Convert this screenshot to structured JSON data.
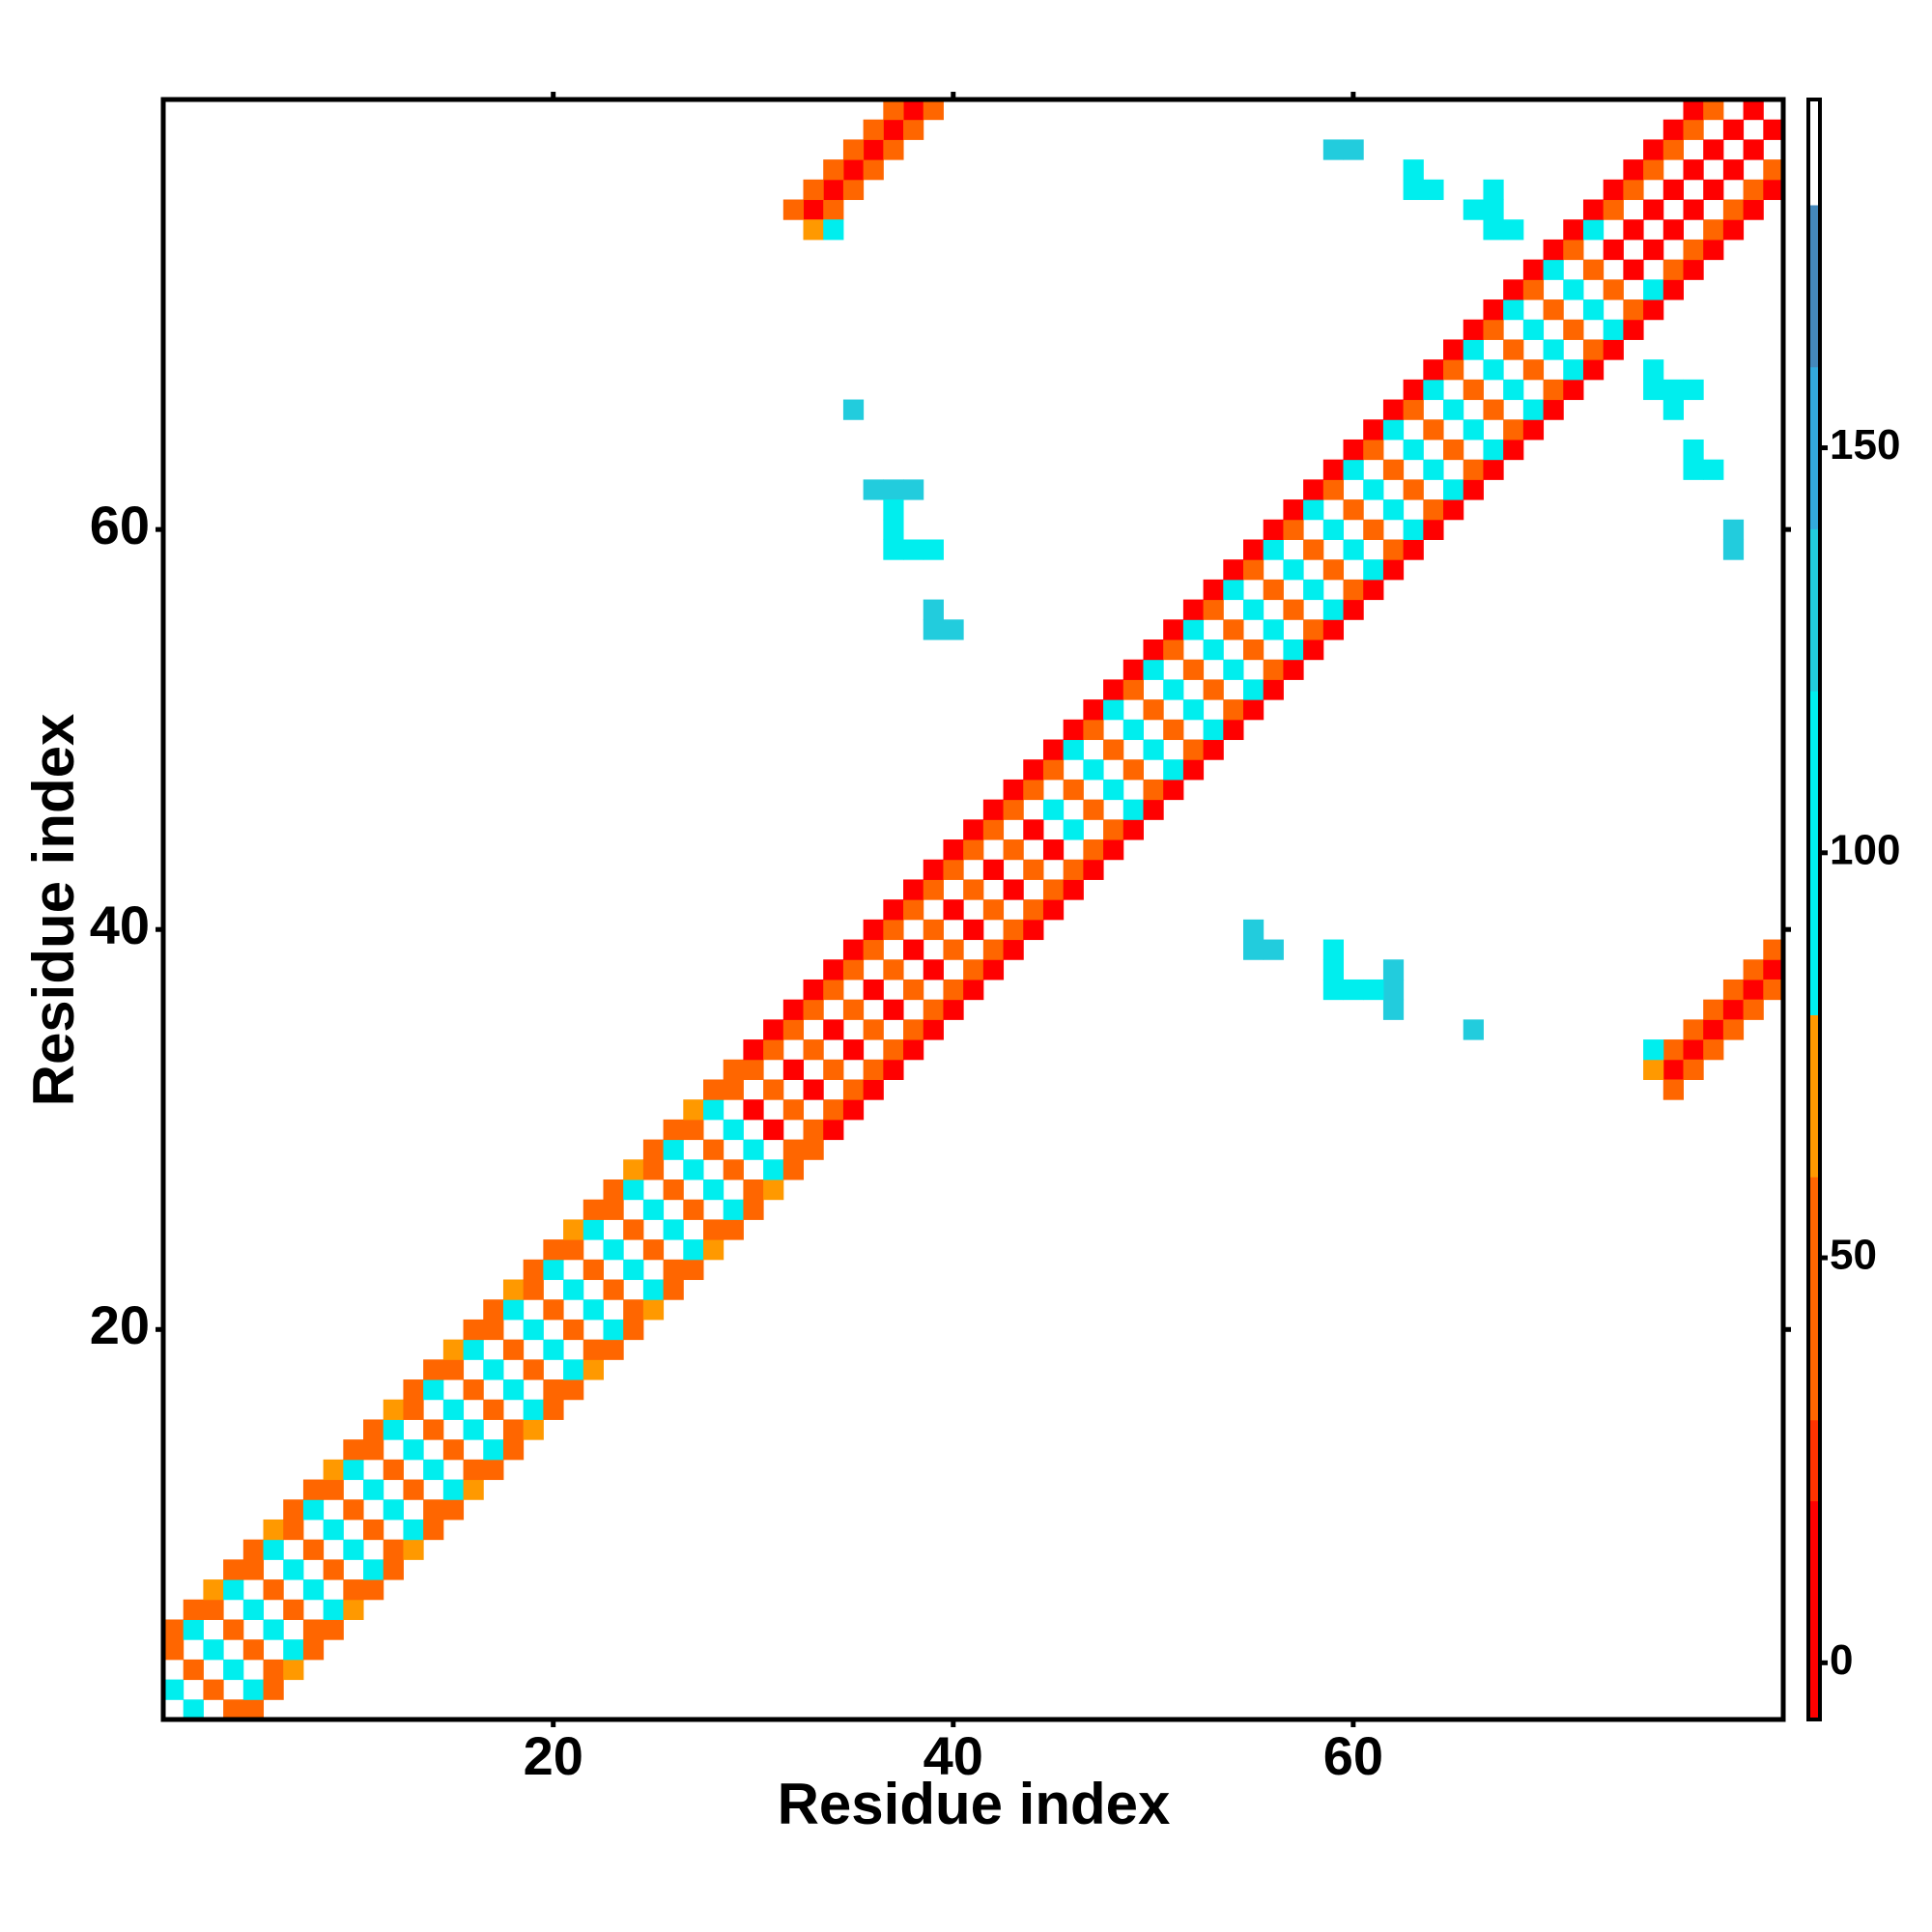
{
  "chart_data": {
    "type": "heatmap",
    "symmetric": true,
    "x_label": "Residue index",
    "y_label": "Residue index",
    "xlim": [
      0.5,
      81.5
    ],
    "ylim": [
      0.5,
      81.5
    ],
    "xticks": [
      20,
      40,
      60
    ],
    "yticks": [
      20,
      40,
      60
    ],
    "colorbar_lim": [
      -7,
      193
    ],
    "colorbar_ticks": [
      0,
      50,
      100,
      150
    ],
    "colorscale": [
      [
        -7,
        "#ff0000"
      ],
      [
        20,
        "#ff3300"
      ],
      [
        30,
        "#ff6600"
      ],
      [
        60,
        "#ff9900"
      ],
      [
        80,
        "#00eeee"
      ],
      [
        120,
        "#22ccdd"
      ],
      [
        140,
        "#33aadd"
      ],
      [
        160,
        "#4488bb"
      ],
      [
        180,
        "#ffffff"
      ]
    ],
    "cells": [
      [
        1,
        2,
        100
      ],
      [
        1,
        4,
        40
      ],
      [
        1,
        5,
        40
      ],
      [
        2,
        3,
        40
      ],
      [
        2,
        5,
        100
      ],
      [
        2,
        6,
        40
      ],
      [
        3,
        4,
        100
      ],
      [
        3,
        6,
        40
      ],
      [
        3,
        7,
        65
      ],
      [
        4,
        5,
        40
      ],
      [
        4,
        7,
        100
      ],
      [
        4,
        8,
        40
      ],
      [
        5,
        6,
        100
      ],
      [
        5,
        8,
        40
      ],
      [
        5,
        9,
        40
      ],
      [
        6,
        7,
        40
      ],
      [
        6,
        9,
        100
      ],
      [
        6,
        10,
        65
      ],
      [
        7,
        8,
        100
      ],
      [
        7,
        10,
        40
      ],
      [
        7,
        11,
        40
      ],
      [
        8,
        9,
        40
      ],
      [
        8,
        11,
        100
      ],
      [
        8,
        12,
        40
      ],
      [
        9,
        10,
        100
      ],
      [
        9,
        12,
        40
      ],
      [
        9,
        13,
        65
      ],
      [
        10,
        11,
        40
      ],
      [
        10,
        13,
        100
      ],
      [
        10,
        14,
        40
      ],
      [
        11,
        12,
        100
      ],
      [
        11,
        14,
        40
      ],
      [
        11,
        15,
        40
      ],
      [
        12,
        13,
        40
      ],
      [
        12,
        15,
        100
      ],
      [
        12,
        16,
        65
      ],
      [
        13,
        14,
        100
      ],
      [
        13,
        16,
        40
      ],
      [
        13,
        17,
        40
      ],
      [
        14,
        15,
        40
      ],
      [
        14,
        17,
        100
      ],
      [
        14,
        18,
        40
      ],
      [
        15,
        16,
        100
      ],
      [
        15,
        18,
        40
      ],
      [
        15,
        19,
        65
      ],
      [
        16,
        17,
        40
      ],
      [
        16,
        19,
        100
      ],
      [
        16,
        20,
        40
      ],
      [
        17,
        18,
        100
      ],
      [
        17,
        20,
        40
      ],
      [
        17,
        21,
        40
      ],
      [
        18,
        19,
        40
      ],
      [
        18,
        21,
        100
      ],
      [
        18,
        22,
        65
      ],
      [
        19,
        20,
        100
      ],
      [
        19,
        22,
        40
      ],
      [
        19,
        23,
        40
      ],
      [
        20,
        21,
        40
      ],
      [
        20,
        23,
        100
      ],
      [
        20,
        24,
        40
      ],
      [
        21,
        22,
        100
      ],
      [
        21,
        24,
        40
      ],
      [
        21,
        25,
        65
      ],
      [
        22,
        23,
        40
      ],
      [
        22,
        25,
        100
      ],
      [
        22,
        26,
        40
      ],
      [
        23,
        24,
        100
      ],
      [
        23,
        26,
        40
      ],
      [
        23,
        27,
        40
      ],
      [
        24,
        25,
        40
      ],
      [
        24,
        27,
        100
      ],
      [
        24,
        28,
        65
      ],
      [
        25,
        26,
        100
      ],
      [
        25,
        28,
        40
      ],
      [
        25,
        29,
        40
      ],
      [
        26,
        27,
        40
      ],
      [
        26,
        29,
        100
      ],
      [
        26,
        30,
        40
      ],
      [
        27,
        28,
        100
      ],
      [
        27,
        30,
        40
      ],
      [
        27,
        31,
        65
      ],
      [
        28,
        29,
        40
      ],
      [
        28,
        31,
        100
      ],
      [
        28,
        32,
        40
      ],
      [
        29,
        30,
        100
      ],
      [
        29,
        32,
        40
      ],
      [
        29,
        33,
        40
      ],
      [
        30,
        31,
        15
      ],
      [
        30,
        33,
        40
      ],
      [
        30,
        34,
        15
      ],
      [
        31,
        32,
        40
      ],
      [
        31,
        34,
        40
      ],
      [
        31,
        35,
        15
      ],
      [
        32,
        33,
        15
      ],
      [
        32,
        35,
        40
      ],
      [
        32,
        36,
        15
      ],
      [
        33,
        34,
        40
      ],
      [
        33,
        36,
        40
      ],
      [
        33,
        37,
        15
      ],
      [
        34,
        35,
        15
      ],
      [
        34,
        37,
        40
      ],
      [
        34,
        38,
        15
      ],
      [
        35,
        36,
        40
      ],
      [
        35,
        38,
        40
      ],
      [
        35,
        39,
        15
      ],
      [
        36,
        37,
        15
      ],
      [
        36,
        39,
        40
      ],
      [
        36,
        40,
        15
      ],
      [
        37,
        38,
        40
      ],
      [
        37,
        40,
        40
      ],
      [
        37,
        41,
        15
      ],
      [
        38,
        39,
        15
      ],
      [
        38,
        41,
        40
      ],
      [
        38,
        42,
        15
      ],
      [
        39,
        40,
        40
      ],
      [
        39,
        42,
        40
      ],
      [
        39,
        43,
        15
      ],
      [
        40,
        41,
        15
      ],
      [
        40,
        43,
        40
      ],
      [
        40,
        44,
        15
      ],
      [
        41,
        42,
        40
      ],
      [
        41,
        44,
        40
      ],
      [
        41,
        45,
        15
      ],
      [
        42,
        43,
        15
      ],
      [
        42,
        45,
        40
      ],
      [
        42,
        46,
        15
      ],
      [
        43,
        44,
        40
      ],
      [
        43,
        46,
        40
      ],
      [
        43,
        47,
        15
      ],
      [
        44,
        45,
        15
      ],
      [
        44,
        47,
        40
      ],
      [
        44,
        48,
        15
      ],
      [
        45,
        46,
        100
      ],
      [
        45,
        48,
        40
      ],
      [
        45,
        49,
        15
      ],
      [
        46,
        47,
        40
      ],
      [
        46,
        49,
        100
      ],
      [
        46,
        50,
        15
      ],
      [
        47,
        48,
        100
      ],
      [
        47,
        50,
        40
      ],
      [
        47,
        51,
        15
      ],
      [
        48,
        49,
        40
      ],
      [
        48,
        51,
        100
      ],
      [
        48,
        52,
        15
      ],
      [
        49,
        50,
        100
      ],
      [
        49,
        52,
        40
      ],
      [
        49,
        53,
        15
      ],
      [
        50,
        51,
        40
      ],
      [
        50,
        53,
        100
      ],
      [
        50,
        54,
        15
      ],
      [
        51,
        52,
        100
      ],
      [
        51,
        54,
        40
      ],
      [
        51,
        55,
        15
      ],
      [
        52,
        53,
        40
      ],
      [
        52,
        55,
        100
      ],
      [
        52,
        56,
        15
      ],
      [
        53,
        54,
        100
      ],
      [
        53,
        56,
        40
      ],
      [
        53,
        57,
        15
      ],
      [
        54,
        55,
        40
      ],
      [
        54,
        57,
        100
      ],
      [
        54,
        58,
        15
      ],
      [
        55,
        56,
        100
      ],
      [
        55,
        58,
        40
      ],
      [
        55,
        59,
        15
      ],
      [
        56,
        57,
        40
      ],
      [
        56,
        59,
        100
      ],
      [
        56,
        60,
        15
      ],
      [
        57,
        58,
        100
      ],
      [
        57,
        60,
        40
      ],
      [
        57,
        61,
        15
      ],
      [
        58,
        59,
        40
      ],
      [
        58,
        61,
        100
      ],
      [
        58,
        62,
        15
      ],
      [
        59,
        60,
        100
      ],
      [
        59,
        62,
        40
      ],
      [
        59,
        63,
        15
      ],
      [
        60,
        61,
        40
      ],
      [
        60,
        63,
        100
      ],
      [
        60,
        64,
        15
      ],
      [
        61,
        62,
        100
      ],
      [
        61,
        64,
        40
      ],
      [
        61,
        65,
        15
      ],
      [
        62,
        63,
        40
      ],
      [
        62,
        65,
        100
      ],
      [
        62,
        66,
        15
      ],
      [
        63,
        64,
        100
      ],
      [
        63,
        66,
        40
      ],
      [
        63,
        67,
        15
      ],
      [
        64,
        65,
        40
      ],
      [
        64,
        67,
        100
      ],
      [
        64,
        68,
        15
      ],
      [
        65,
        66,
        100
      ],
      [
        65,
        68,
        40
      ],
      [
        65,
        69,
        15
      ],
      [
        66,
        67,
        40
      ],
      [
        66,
        69,
        100
      ],
      [
        66,
        70,
        15
      ],
      [
        67,
        68,
        100
      ],
      [
        67,
        70,
        40
      ],
      [
        67,
        71,
        15
      ],
      [
        68,
        69,
        40
      ],
      [
        68,
        71,
        100
      ],
      [
        68,
        72,
        15
      ],
      [
        69,
        70,
        100
      ],
      [
        69,
        72,
        40
      ],
      [
        69,
        73,
        15
      ],
      [
        70,
        71,
        40
      ],
      [
        70,
        73,
        100
      ],
      [
        70,
        74,
        15
      ],
      [
        71,
        72,
        100
      ],
      [
        71,
        74,
        40
      ],
      [
        71,
        75,
        15
      ],
      [
        72,
        73,
        40
      ],
      [
        72,
        75,
        100
      ],
      [
        72,
        76,
        15
      ],
      [
        73,
        74,
        15
      ],
      [
        73,
        76,
        40
      ],
      [
        73,
        77,
        15
      ],
      [
        74,
        75,
        15
      ],
      [
        74,
        77,
        40
      ],
      [
        74,
        78,
        15
      ],
      [
        75,
        76,
        15
      ],
      [
        75,
        78,
        40
      ],
      [
        75,
        79,
        15
      ],
      [
        76,
        77,
        15
      ],
      [
        76,
        79,
        40
      ],
      [
        76,
        80,
        15
      ],
      [
        77,
        78,
        15
      ],
      [
        77,
        80,
        40
      ],
      [
        77,
        81,
        15
      ],
      [
        78,
        79,
        15
      ],
      [
        78,
        81,
        40
      ],
      [
        79,
        80,
        15
      ],
      [
        80,
        81,
        15
      ],
      [
        33,
        76,
        15
      ],
      [
        32,
        76,
        40
      ],
      [
        34,
        76,
        40
      ],
      [
        34,
        77,
        15
      ],
      [
        33,
        77,
        40
      ],
      [
        35,
        77,
        40
      ],
      [
        35,
        78,
        15
      ],
      [
        34,
        78,
        40
      ],
      [
        36,
        78,
        40
      ],
      [
        36,
        79,
        15
      ],
      [
        35,
        79,
        40
      ],
      [
        37,
        79,
        40
      ],
      [
        37,
        80,
        15
      ],
      [
        36,
        80,
        40
      ],
      [
        38,
        80,
        40
      ],
      [
        38,
        81,
        15
      ],
      [
        37,
        81,
        40
      ],
      [
        39,
        81,
        40
      ],
      [
        33,
        75,
        65
      ],
      [
        34,
        75,
        100
      ],
      [
        35,
        66,
        130
      ],
      [
        36,
        62,
        130
      ],
      [
        37,
        62,
        130
      ],
      [
        38,
        62,
        130
      ],
      [
        37,
        61,
        100
      ],
      [
        37,
        60,
        100
      ],
      [
        37,
        59,
        100
      ],
      [
        38,
        59,
        100
      ],
      [
        39,
        59,
        100
      ],
      [
        39,
        56,
        130
      ],
      [
        39,
        55,
        130
      ],
      [
        40,
        55,
        130
      ],
      [
        59,
        79,
        130
      ],
      [
        60,
        79,
        130
      ],
      [
        63,
        78,
        100
      ],
      [
        63,
        77,
        100
      ],
      [
        64,
        77,
        100
      ],
      [
        66,
        76,
        100
      ],
      [
        67,
        76,
        100
      ],
      [
        67,
        77,
        100
      ],
      [
        67,
        75,
        100
      ],
      [
        68,
        75,
        100
      ]
    ]
  }
}
